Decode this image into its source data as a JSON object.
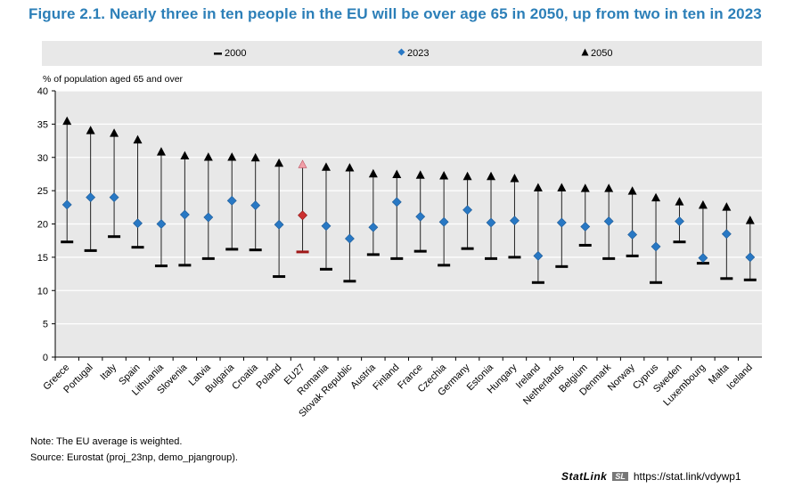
{
  "title": "Figure 2.1. Nearly three in ten people in the EU will be over age 65 in 2050, up from two in ten in 2023",
  "colors": {
    "title": "#2c7fb8",
    "diamond": "#2878c4",
    "eu_diamond": "#cc3030",
    "eu_triangle": "#f0a0a8",
    "plot_bg": "#e8e8e8",
    "grid": "#ffffff"
  },
  "legend": {
    "s2000": "2000",
    "s2023": "2023",
    "s2050": "2050"
  },
  "note": "Note: The EU average is weighted.",
  "source": "Source: Eurostat (proj_23np, demo_pjangroup).",
  "statlink": {
    "brand": "StatLink",
    "logo": "SL",
    "url": "https://stat.link/vdywp1"
  },
  "chart_data": {
    "type": "scatter",
    "ylabel": "% of population aged 65 and over",
    "ylim": [
      0,
      40
    ],
    "yticks": [
      0,
      5,
      10,
      15,
      20,
      25,
      30,
      35,
      40
    ],
    "highlight": "EU27",
    "categories": [
      "Greece",
      "Portugal",
      "Italy",
      "Spain",
      "Lithuania",
      "Slovenia",
      "Latvia",
      "Bulgaria",
      "Croatia",
      "Poland",
      "EU27",
      "Romania",
      "Slovak Republic",
      "Austria",
      "Finland",
      "France",
      "Czechia",
      "Germany",
      "Estonia",
      "Hungary",
      "Ireland",
      "Netherlands",
      "Belgium",
      "Denmark",
      "Norway",
      "Cyprus",
      "Sweden",
      "Luxembourg",
      "Malta",
      "Iceland"
    ],
    "series": [
      {
        "name": "2000",
        "marker": "dash",
        "values": [
          17.3,
          16.0,
          18.1,
          16.5,
          13.7,
          13.8,
          14.8,
          16.2,
          16.1,
          12.1,
          15.8,
          13.2,
          11.4,
          15.4,
          14.8,
          15.9,
          13.8,
          16.3,
          14.8,
          15.0,
          11.2,
          13.6,
          16.8,
          14.8,
          15.2,
          11.2,
          17.3,
          14.1,
          11.8,
          11.6
        ]
      },
      {
        "name": "2023",
        "marker": "diamond",
        "values": [
          22.9,
          24.0,
          24.0,
          20.1,
          20.0,
          21.4,
          21.0,
          23.5,
          22.8,
          19.9,
          21.3,
          19.7,
          17.8,
          19.5,
          23.3,
          21.1,
          20.3,
          22.1,
          20.2,
          20.5,
          15.2,
          20.2,
          19.6,
          20.4,
          18.4,
          16.6,
          20.4,
          14.9,
          18.5,
          15.0
        ]
      },
      {
        "name": "2050",
        "marker": "triangle",
        "values": [
          35.4,
          34.0,
          33.6,
          32.6,
          30.8,
          30.2,
          30.0,
          30.0,
          29.9,
          29.1,
          28.9,
          28.5,
          28.4,
          27.5,
          27.4,
          27.3,
          27.2,
          27.1,
          27.1,
          26.8,
          25.4,
          25.4,
          25.3,
          25.3,
          24.9,
          23.9,
          23.3,
          22.8,
          22.5,
          20.5
        ]
      }
    ]
  }
}
